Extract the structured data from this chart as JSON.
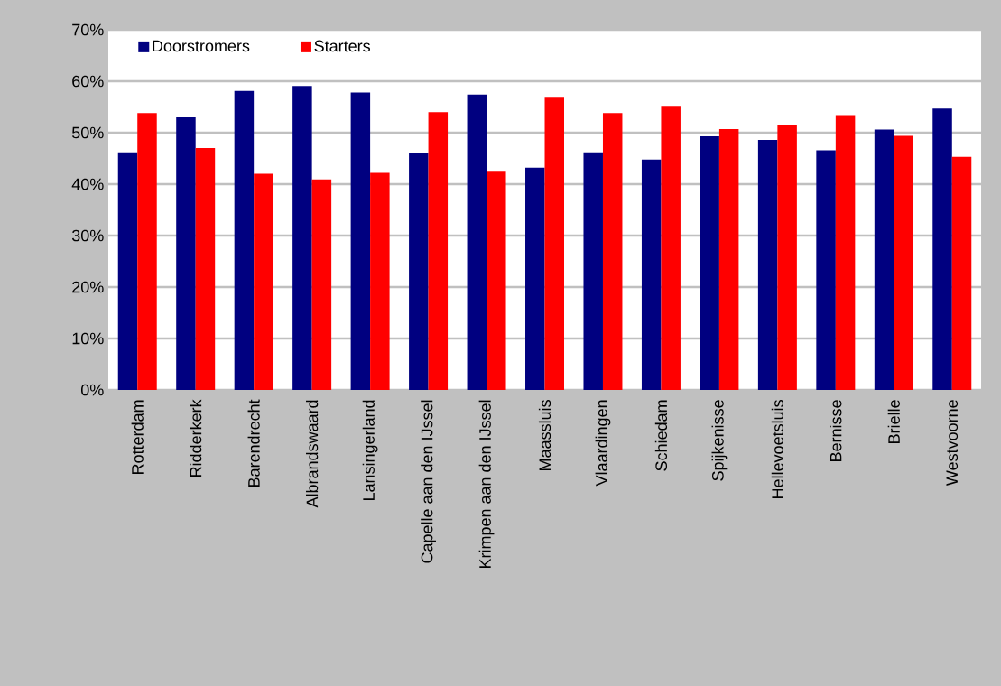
{
  "chart_data": {
    "type": "bar",
    "categories": [
      "Rotterdam",
      "Ridderkerk",
      "Barendrecht",
      "Albrandswaard",
      "Lansingerland",
      "Capelle aan den IJssel",
      "Krimpen aan den IJssel",
      "Maassluis",
      "Vlaardingen",
      "Schiedam",
      "Spijkenisse",
      "Hellevoetsluis",
      "Bernisse",
      "Brielle",
      "Westvoorne"
    ],
    "series": [
      {
        "name": "Doorstromers",
        "color": "#000080",
        "values": [
          46.2,
          53,
          58.1,
          59.1,
          57.8,
          46,
          57.4,
          43.2,
          46.2,
          44.8,
          49.3,
          48.6,
          46.6,
          50.6,
          54.7
        ]
      },
      {
        "name": "Starters",
        "color": "#ff0000",
        "values": [
          53.8,
          47,
          42,
          40.9,
          42.2,
          54,
          42.6,
          56.8,
          53.8,
          55.2,
          50.7,
          51.4,
          53.4,
          49.4,
          45.3
        ]
      }
    ],
    "ylim": [
      0,
      70
    ],
    "yticks": [
      {
        "value": 0,
        "label": "0%"
      },
      {
        "value": 10,
        "label": "10%"
      },
      {
        "value": 20,
        "label": "20%"
      },
      {
        "value": 30,
        "label": "30%"
      },
      {
        "value": 40,
        "label": "40%"
      },
      {
        "value": 50,
        "label": "50%"
      },
      {
        "value": 60,
        "label": "60%"
      },
      {
        "value": 70,
        "label": "70%"
      }
    ],
    "grid": "y",
    "legend": "top left"
  }
}
